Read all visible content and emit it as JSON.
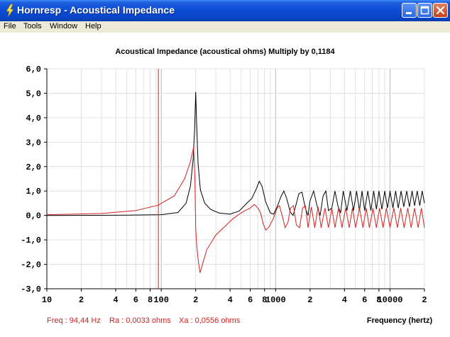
{
  "window": {
    "title": "Hornresp - Acoustical Impedance"
  },
  "menu": {
    "items": [
      "File",
      "Tools",
      "Window",
      "Help"
    ]
  },
  "chart_data": {
    "type": "line",
    "title": "Acoustical Impedance (acoustical ohms)   Multiply by 0,1184",
    "xlabel": "Frequency (hertz)",
    "x_scale": "log",
    "xlim": [
      10,
      20000
    ],
    "ylim": [
      -3,
      6
    ],
    "grid": true,
    "yticks": [
      "6,0",
      "5,0",
      "4,0",
      "3,0",
      "2,0",
      "1,0",
      "0,0",
      "-1,0",
      "-2,0",
      "-3,0"
    ],
    "xtick_labels": [
      {
        "x": 10,
        "label": "10"
      },
      {
        "x": 20,
        "label": "2"
      },
      {
        "x": 40,
        "label": "4"
      },
      {
        "x": 60,
        "label": "6"
      },
      {
        "x": 80,
        "label": "8"
      },
      {
        "x": 100,
        "label": "100"
      },
      {
        "x": 200,
        "label": "2"
      },
      {
        "x": 400,
        "label": "4"
      },
      {
        "x": 600,
        "label": "6"
      },
      {
        "x": 800,
        "label": "8"
      },
      {
        "x": 1000,
        "label": "1000"
      },
      {
        "x": 2000,
        "label": "2"
      },
      {
        "x": 4000,
        "label": "4"
      },
      {
        "x": 6000,
        "label": "6"
      },
      {
        "x": 8000,
        "label": "8"
      },
      {
        "x": 10000,
        "label": "10000"
      },
      {
        "x": 20000,
        "label": "2"
      }
    ],
    "cursor_freq_hz": 94.44,
    "series": [
      {
        "color": "#000000",
        "values": [
          [
            10,
            0.0
          ],
          [
            50,
            0.01
          ],
          [
            100,
            0.03
          ],
          [
            140,
            0.12
          ],
          [
            165,
            0.5
          ],
          [
            180,
            1.2
          ],
          [
            190,
            2.3
          ],
          [
            196,
            3.6
          ],
          [
            200,
            5.05
          ],
          [
            204,
            3.7
          ],
          [
            210,
            2.1
          ],
          [
            220,
            1.05
          ],
          [
            240,
            0.5
          ],
          [
            270,
            0.25
          ],
          [
            320,
            0.1
          ],
          [
            400,
            0.05
          ],
          [
            480,
            0.18
          ],
          [
            560,
            0.5
          ],
          [
            620,
            0.7
          ],
          [
            680,
            1.1
          ],
          [
            720,
            1.4
          ],
          [
            760,
            1.2
          ],
          [
            820,
            0.55
          ],
          [
            900,
            0.1
          ],
          [
            960,
            0.05
          ],
          [
            1030,
            0.35
          ],
          [
            1120,
            0.8
          ],
          [
            1180,
            1.0
          ],
          [
            1250,
            0.7
          ],
          [
            1340,
            0.15
          ],
          [
            1420,
            0.0
          ],
          [
            1500,
            0.4
          ],
          [
            1600,
            0.9
          ],
          [
            1700,
            0.95
          ],
          [
            1820,
            0.3
          ],
          [
            1920,
            0.0
          ],
          [
            2000,
            0.6
          ],
          [
            2150,
            1.0
          ],
          [
            2300,
            0.4
          ],
          [
            2450,
            0.0
          ],
          [
            2600,
            0.8
          ],
          [
            2750,
            1.0
          ],
          [
            2900,
            0.2
          ],
          [
            3100,
            0.3
          ],
          [
            3300,
            1.0
          ],
          [
            3500,
            0.4
          ],
          [
            3700,
            0.1
          ],
          [
            3900,
            1.0
          ],
          [
            4200,
            0.2
          ],
          [
            4500,
            1.0
          ],
          [
            4800,
            0.2
          ],
          [
            5100,
            1.0
          ],
          [
            5400,
            0.2
          ],
          [
            5700,
            1.0
          ],
          [
            6000,
            0.2
          ],
          [
            6400,
            1.0
          ],
          [
            6800,
            0.2
          ],
          [
            7200,
            1.0
          ],
          [
            7600,
            0.25
          ],
          [
            8000,
            1.0
          ],
          [
            8500,
            0.25
          ],
          [
            9000,
            1.0
          ],
          [
            9500,
            0.3
          ],
          [
            10000,
            1.0
          ],
          [
            10600,
            0.3
          ],
          [
            11200,
            1.0
          ],
          [
            11800,
            0.3
          ],
          [
            12500,
            1.0
          ],
          [
            13200,
            0.35
          ],
          [
            14000,
            1.0
          ],
          [
            14800,
            0.35
          ],
          [
            15600,
            1.0
          ],
          [
            16400,
            0.4
          ],
          [
            17300,
            1.0
          ],
          [
            18200,
            0.4
          ],
          [
            19100,
            1.0
          ],
          [
            20000,
            0.5
          ]
        ]
      },
      {
        "color": "#d42020",
        "values": [
          [
            10,
            0.03
          ],
          [
            30,
            0.08
          ],
          [
            60,
            0.2
          ],
          [
            94,
            0.42
          ],
          [
            130,
            0.8
          ],
          [
            160,
            1.5
          ],
          [
            180,
            2.2
          ],
          [
            192,
            2.8
          ],
          [
            197,
            1.5
          ],
          [
            200,
            -0.5
          ],
          [
            204,
            -1.2
          ],
          [
            210,
            -1.8
          ],
          [
            218,
            -2.35
          ],
          [
            228,
            -2.05
          ],
          [
            250,
            -1.4
          ],
          [
            300,
            -0.8
          ],
          [
            360,
            -0.45
          ],
          [
            420,
            -0.15
          ],
          [
            480,
            0.05
          ],
          [
            540,
            0.2
          ],
          [
            600,
            0.3
          ],
          [
            650,
            0.45
          ],
          [
            700,
            0.3
          ],
          [
            740,
            0.1
          ],
          [
            780,
            -0.35
          ],
          [
            820,
            -0.6
          ],
          [
            880,
            -0.45
          ],
          [
            960,
            -0.1
          ],
          [
            1030,
            0.3
          ],
          [
            1080,
            0.4
          ],
          [
            1140,
            0.0
          ],
          [
            1210,
            -0.5
          ],
          [
            1280,
            -0.3
          ],
          [
            1350,
            0.3
          ],
          [
            1430,
            0.4
          ],
          [
            1520,
            -0.4
          ],
          [
            1620,
            -0.5
          ],
          [
            1720,
            0.3
          ],
          [
            1820,
            0.4
          ],
          [
            1920,
            -0.5
          ],
          [
            2050,
            0.35
          ],
          [
            2200,
            -0.5
          ],
          [
            2350,
            0.35
          ],
          [
            2500,
            -0.5
          ],
          [
            2700,
            0.3
          ],
          [
            2900,
            -0.5
          ],
          [
            3100,
            0.3
          ],
          [
            3300,
            -0.5
          ],
          [
            3550,
            0.3
          ],
          [
            3800,
            -0.5
          ],
          [
            4100,
            0.3
          ],
          [
            4400,
            -0.5
          ],
          [
            4700,
            0.3
          ],
          [
            5000,
            -0.5
          ],
          [
            5400,
            0.3
          ],
          [
            5800,
            -0.5
          ],
          [
            6200,
            0.3
          ],
          [
            6600,
            -0.5
          ],
          [
            7100,
            0.3
          ],
          [
            7600,
            -0.5
          ],
          [
            8100,
            0.3
          ],
          [
            8700,
            -0.5
          ],
          [
            9300,
            0.3
          ],
          [
            10000,
            -0.5
          ],
          [
            10800,
            0.3
          ],
          [
            11600,
            -0.5
          ],
          [
            12400,
            0.3
          ],
          [
            13300,
            -0.5
          ],
          [
            14300,
            0.3
          ],
          [
            15300,
            -0.5
          ],
          [
            16400,
            0.3
          ],
          [
            17600,
            -0.5
          ],
          [
            18800,
            0.3
          ],
          [
            20000,
            -0.5
          ]
        ]
      }
    ]
  },
  "status": {
    "freq": "Freq : 94,44 Hz",
    "ra": "Ra : 0,0033 ohms",
    "xa": "Xa : 0,0556 ohms"
  },
  "colors": {
    "accent_red": "#d42020",
    "grid": "#d8d8d8",
    "title_bar": "#0a4bd6"
  },
  "icons": {
    "app": "lightning-icon",
    "minimize": "minimize-icon",
    "maximize": "maximize-icon",
    "close": "close-icon"
  }
}
